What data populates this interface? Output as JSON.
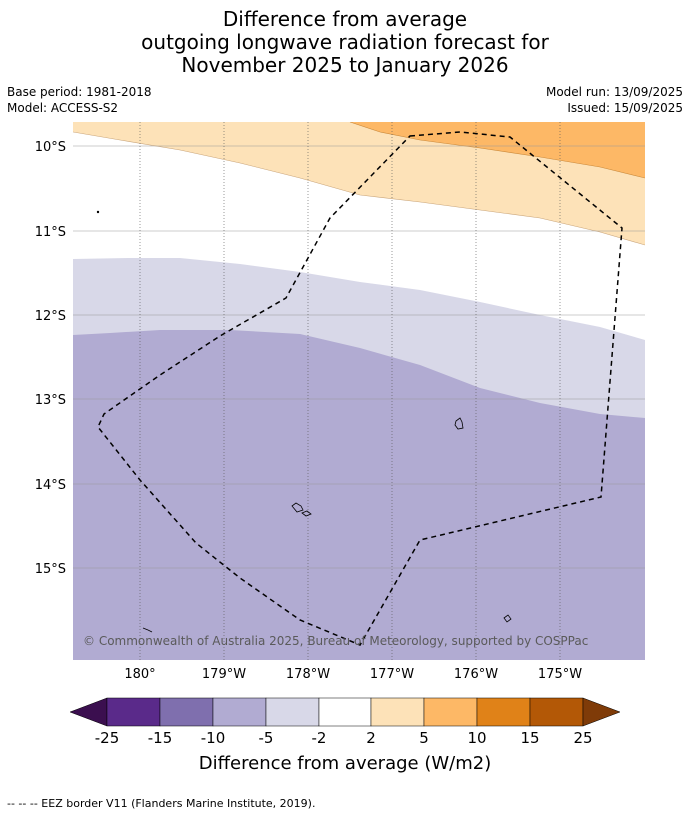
{
  "title": {
    "line1": "Difference from average",
    "line2": "outgoing longwave radiation forecast for",
    "line3": "November 2025 to January 2026"
  },
  "meta": {
    "base_period": "Base period: 1981-2018",
    "model": "Model: ACCESS-S2",
    "model_run": "Model run: 13/09/2025",
    "issued": "Issued: 15/09/2025"
  },
  "map": {
    "lat_labels": [
      "10°S",
      "11°S",
      "12°S",
      "13°S",
      "14°S",
      "15°S"
    ],
    "lon_labels": [
      "180°",
      "179°W",
      "178°W",
      "177°W",
      "176°W",
      "175°W"
    ],
    "copyright": "© Commonwealth of Australia 2025, Bureau of Meteorology, supported by COSPPac"
  },
  "colorbar": {
    "tick_labels": [
      "-25",
      "-15",
      "-10",
      "-5",
      "-2",
      "2",
      "5",
      "10",
      "15",
      "25"
    ],
    "colors": {
      "lt_25": "#3b0f4f",
      "n25_n15": "#5a2a8a",
      "n15_n10": "#7f6fae",
      "n10_n5": "#b1abd2",
      "n5_n2": "#d8d8e8",
      "n2_2": "#ffffff",
      "p2_5": "#fde2b8",
      "p5_10": "#fdb866",
      "p10_15": "#e08218",
      "p15_25": "#b35806",
      "gt_25": "#7f3b08"
    },
    "label": "Difference from average (W/m2)"
  },
  "footnote": "--  --  -- EEZ border V11 (Flanders Marine Institute, 2019)."
}
